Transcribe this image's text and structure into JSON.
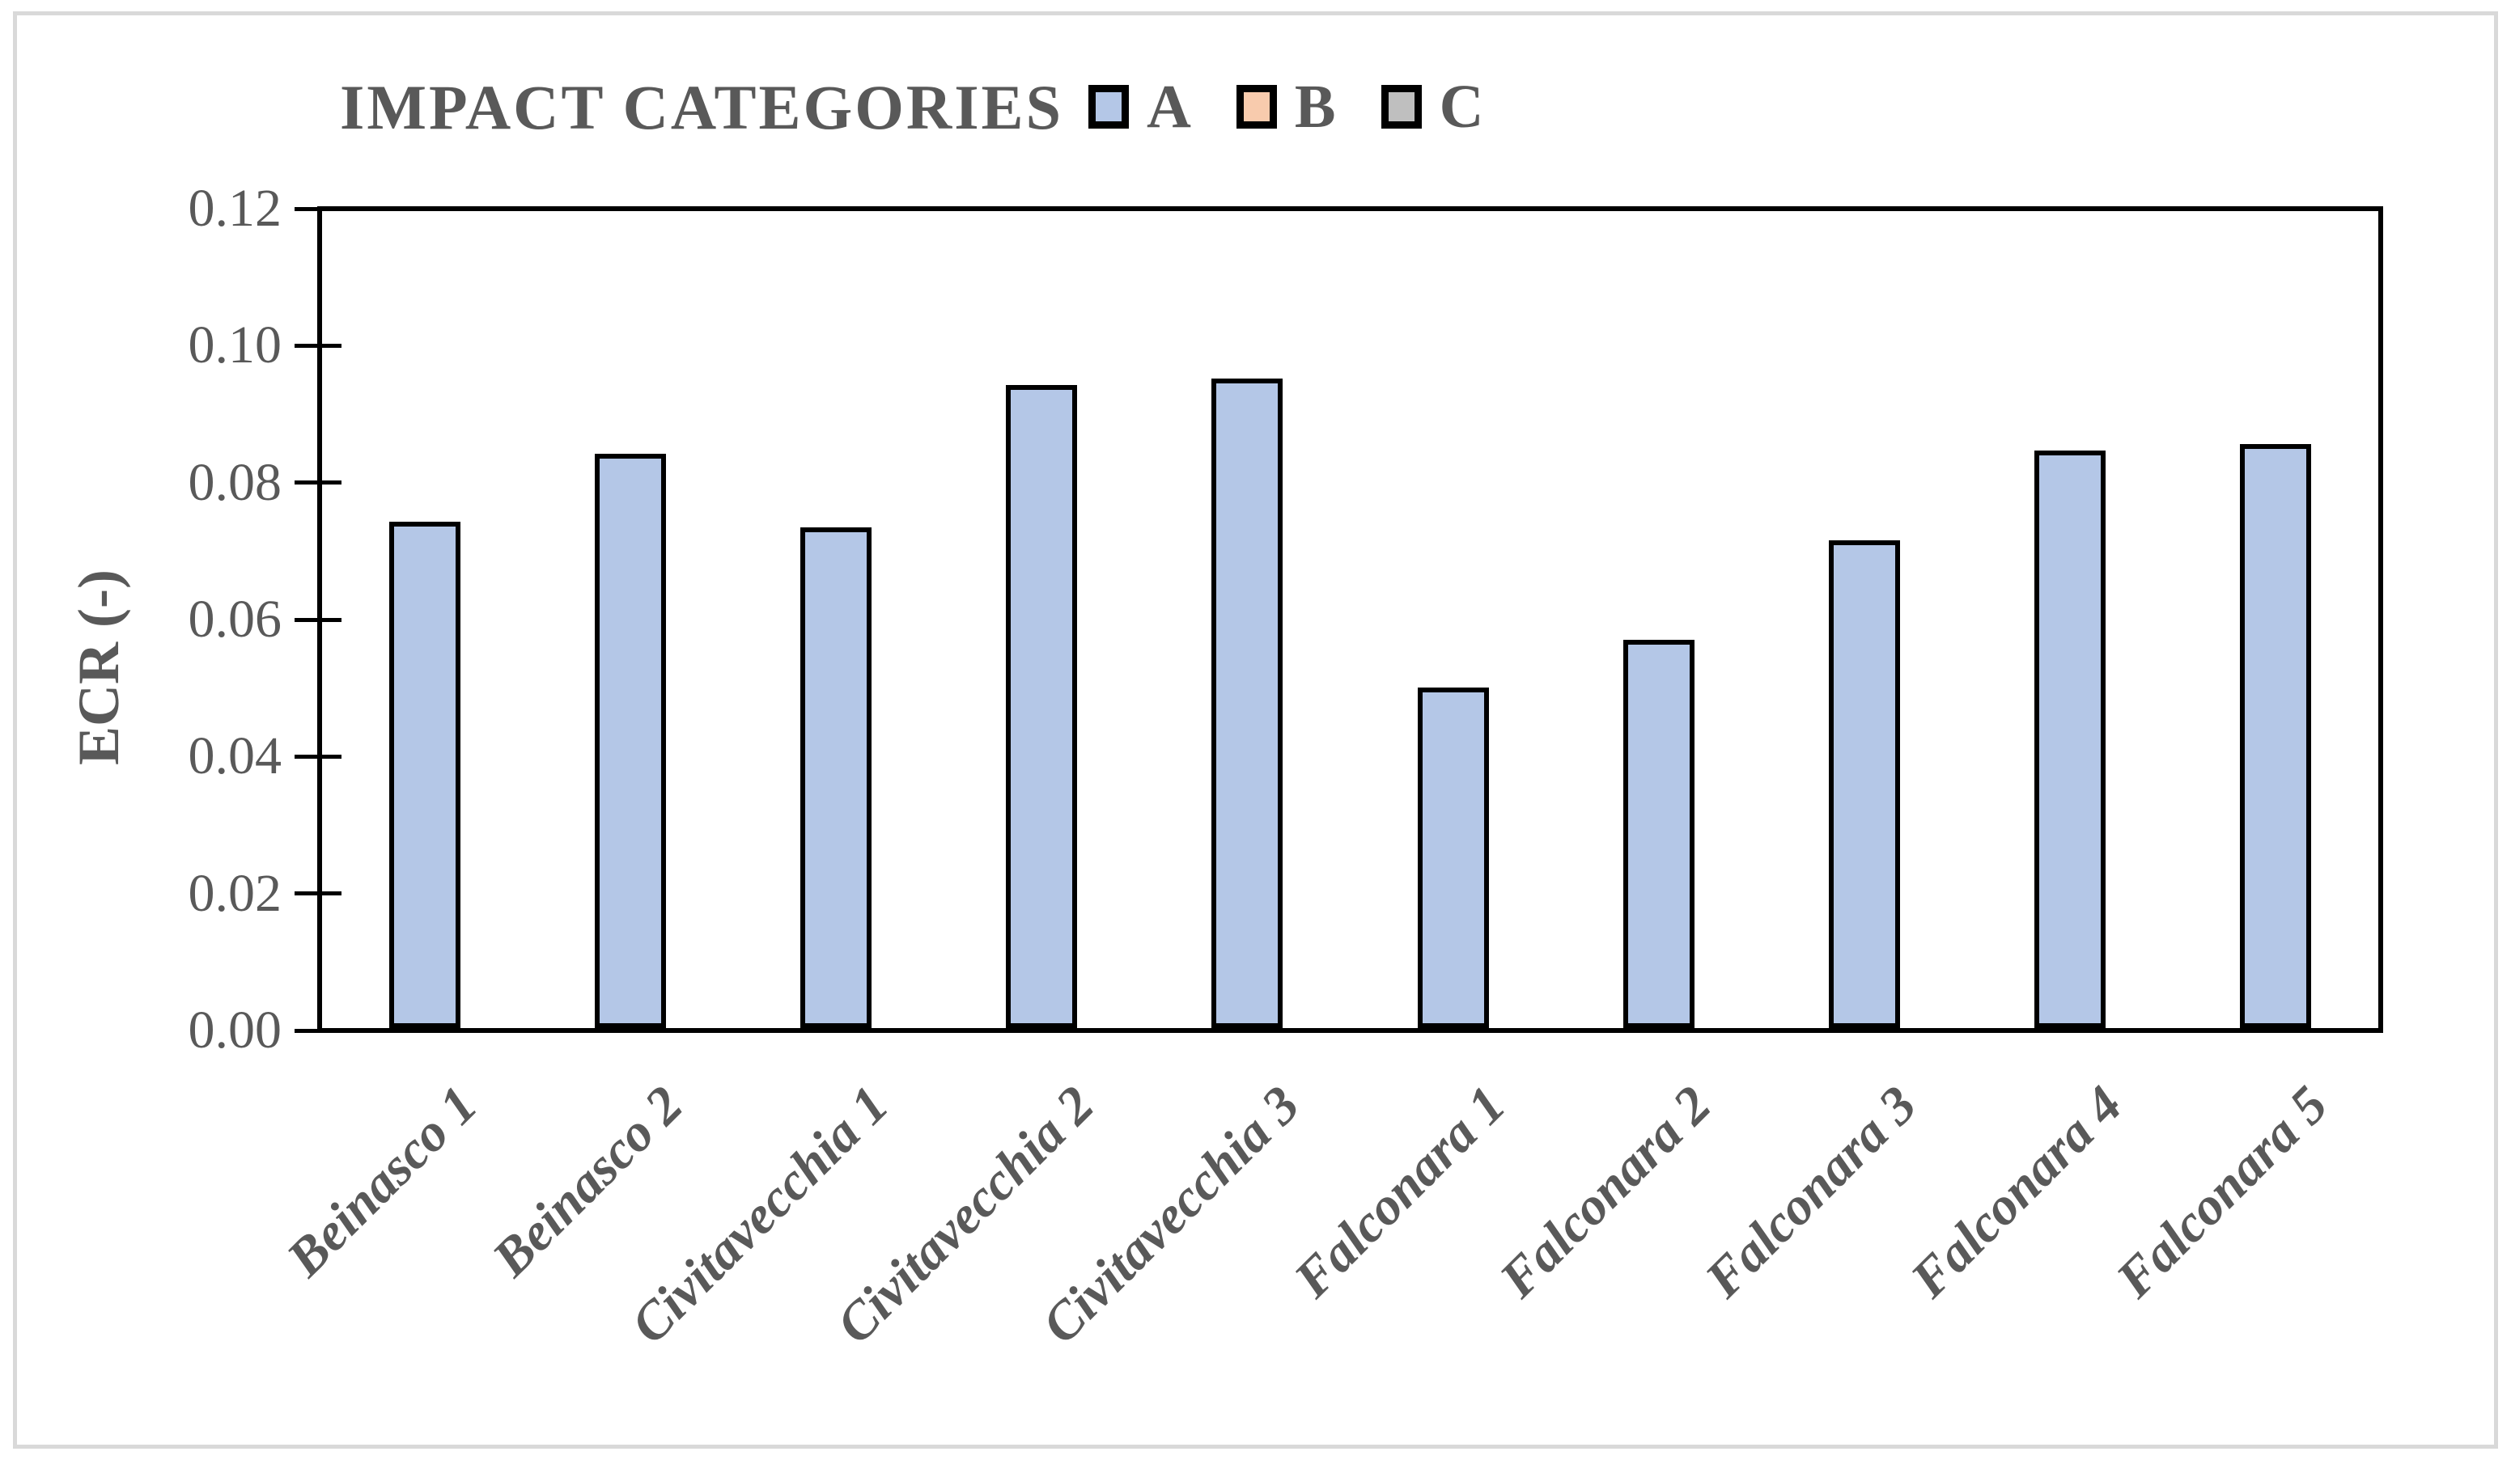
{
  "figure": {
    "frame_color": "#d9d9d9",
    "background": "#ffffff",
    "text_color": "#595959"
  },
  "chart_data": {
    "type": "bar",
    "title": "IMPACT CATEGORIES",
    "xlabel": "",
    "ylabel": "ECR (-)",
    "categories": [
      "Beinasco 1",
      "Beinasco 2",
      "Civitavecchia 1",
      "Civitavecchia 2",
      "Civitavecchia 3",
      "Falconara 1",
      "Falconara 2",
      "Falconara 3",
      "Falconara 4",
      "Falconara 5"
    ],
    "series": [
      {
        "name": "A",
        "color": "#b4c7e7",
        "values": [
          0.0744,
          0.0844,
          0.0736,
          0.0945,
          0.0954,
          0.05,
          0.057,
          0.0716,
          0.0848,
          0.0858
        ]
      }
    ],
    "legend": [
      {
        "label": "A",
        "color": "#b4c7e7"
      },
      {
        "label": "B",
        "color": "#f8cbad"
      },
      {
        "label": "C",
        "color": "#bfbfbf"
      }
    ],
    "legend_position": "top-center",
    "ylim": [
      0,
      0.12
    ],
    "ytick_step": 0.02,
    "yticks": [
      "0.12",
      "0.10",
      "0.08",
      "0.06",
      "0.04",
      "0.02",
      "0.00"
    ],
    "grid": false,
    "bar_border_color": "#000000",
    "axis_color": "#000000",
    "x_tick_rotation_deg": 45
  }
}
